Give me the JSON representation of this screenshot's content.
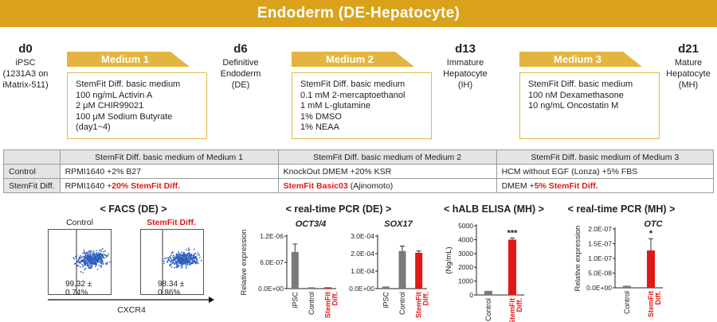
{
  "banner_title": "Endoderm (DE-Hepatocyte)",
  "stages": [
    {
      "day": "d0",
      "lines": [
        "iPSC",
        "(1231A3 on",
        "iMatrix-511)"
      ]
    },
    {
      "day": "d6",
      "lines": [
        "Definitive",
        "Endoderm",
        "(DE)"
      ]
    },
    {
      "day": "d13",
      "lines": [
        "Immature",
        "Hepatocyte",
        "(IH)"
      ]
    },
    {
      "day": "d21",
      "lines": [
        "Mature",
        "Hepatocyte",
        "(MH)"
      ]
    }
  ],
  "media": [
    {
      "label": "Medium 1",
      "lines": [
        "StemFit Diff. basic medium",
        "100 ng/mL Activin A",
        "2 μM CHIR99021",
        "100 μM Sodium Butyrate",
        "(day1~4)"
      ]
    },
    {
      "label": "Medium 2",
      "lines": [
        "StemFit Diff. basic medium",
        "0.1 mM 2-mercaptoethanol",
        "1 mM L-glutamine",
        "1% DMSO",
        "1% NEAA"
      ]
    },
    {
      "label": "Medium 3",
      "lines": [
        "StemFit Diff. basic medium",
        "100 nM Dexamethasone",
        "10 ng/mL Oncostatin M"
      ]
    }
  ],
  "table": {
    "headers": [
      "",
      "StemFit Diff. basic medium of Medium 1",
      "StemFit Diff. basic medium of Medium 2",
      "StemFit Diff. basic medium of Medium 3"
    ],
    "rows": [
      {
        "label": "Control",
        "cells": [
          {
            "plain": "RPMI1640 +2% B27",
            "red": ""
          },
          {
            "plain": "KnockOut DMEM +20% KSR",
            "red": ""
          },
          {
            "plain": "HCM without EGF (Lonza) +5% FBS",
            "red": ""
          }
        ]
      },
      {
        "label": "StemFit Diff.",
        "cells": [
          {
            "plain": "RPMI1640 +",
            "red": "20% StemFit Diff."
          },
          {
            "red": "StemFit Basic03",
            "plain": " (Ajinomoto)",
            "red_first": true
          },
          {
            "plain": "DMEM +",
            "red": "5% StemFit Diff."
          }
        ]
      }
    ]
  },
  "facs": {
    "title": "< FACS (DE) >",
    "panels": [
      {
        "label": "Control",
        "value": "99.32 ± 0.74%",
        "red": false
      },
      {
        "label": "StemFit Diff.",
        "value": "98.34 ± 0.86%",
        "red": true
      }
    ],
    "xlabel": "CXCR4"
  },
  "pcr_de": {
    "title": "< real-time PCR (DE) >"
  },
  "elisa": {
    "title": "< hALB ELISA (MH) >"
  },
  "pcr_mh": {
    "title": "< real-time PCR (MH) >"
  },
  "chart_data": [
    {
      "type": "bar",
      "title": "OCT3/4",
      "ylabel": "Relative expression",
      "categories": [
        "iPSC",
        "Control",
        "StemFit Diff."
      ],
      "values": [
        8.4e-07,
        3e-08,
        3e-08
      ],
      "errors": [
        1.8e-07,
        0,
        0
      ],
      "ylim": [
        0,
        1.2e-06
      ],
      "yticks": [
        "0.0E+00",
        "6.0E-07",
        "1.2E-06"
      ],
      "colors": [
        "#7a7a7a",
        "#7a7a7a",
        "#e01818"
      ],
      "significance": [
        "",
        "",
        ""
      ]
    },
    {
      "type": "bar",
      "title": "SOX17",
      "ylabel": "",
      "categories": [
        "iPSC",
        "Control",
        "StemFit Diff."
      ],
      "values": [
        1.2e-05,
        0.000215,
        0.000205
      ],
      "errors": [
        0,
        2.8e-05,
        1e-05
      ],
      "ylim": [
        0,
        0.0003
      ],
      "yticks": [
        "0.0E+00",
        "1.0E-04",
        "2.0E-04",
        "3.0E-04"
      ],
      "colors": [
        "#7a7a7a",
        "#7a7a7a",
        "#e01818"
      ],
      "significance": [
        "",
        "",
        ""
      ]
    },
    {
      "type": "bar",
      "title": "",
      "ylabel": "(Ng/mL)",
      "categories": [
        "Control",
        "StemFit Diff."
      ],
      "values": [
        300,
        4000
      ],
      "errors": [
        0,
        120
      ],
      "ylim": [
        0,
        5000
      ],
      "yticks": [
        "0",
        "1000",
        "2000",
        "3000",
        "4000",
        "5000"
      ],
      "colors": [
        "#7a7a7a",
        "#e01818"
      ],
      "significance": [
        "",
        "***"
      ]
    },
    {
      "type": "bar",
      "title": "OTC",
      "ylabel": "Relative expression",
      "categories": [
        "Control",
        "StemFit Diff."
      ],
      "values": [
        7e-09,
        1.27e-07
      ],
      "errors": [
        0,
        4e-08
      ],
      "ylim": [
        0,
        2e-07
      ],
      "yticks": [
        "0.0E+00",
        "5.0E-08",
        "1.0E-07",
        "1.5E-07",
        "2.0E-07"
      ],
      "colors": [
        "#7a7a7a",
        "#e01818"
      ],
      "significance": [
        "",
        "*"
      ]
    }
  ]
}
